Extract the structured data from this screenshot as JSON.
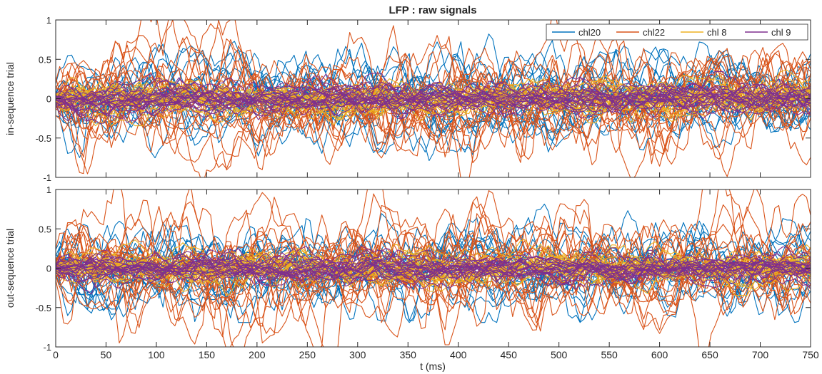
{
  "title": "LFP : raw signals",
  "xlabel": "t (ms)",
  "colors": {
    "chl20": "#0072BD",
    "chl22": "#D95319",
    "chl 8": "#EDB120",
    "chl 9": "#7E2F8E"
  },
  "legend": {
    "placement": "top-right (upper panel)",
    "entries": [
      "chl20",
      "chl22",
      "chl 8",
      "chl 9"
    ]
  },
  "chart_data": [
    {
      "type": "line",
      "panel": "top",
      "title": "LFP : raw signals",
      "xlabel": "",
      "ylabel": "in-sequence trial",
      "xlim": [
        0,
        750
      ],
      "ylim": [
        -1,
        1
      ],
      "xticks": [
        0,
        50,
        100,
        150,
        200,
        250,
        300,
        350,
        400,
        450,
        500,
        550,
        600,
        650,
        700,
        750
      ],
      "yticks": [
        -1,
        -0.5,
        0,
        0.5,
        1
      ],
      "ytick_labels": [
        "-1",
        "-0.5",
        "0",
        "0.5",
        "1"
      ],
      "show_xtick_labels": false,
      "grid": false,
      "series": [
        {
          "name": "chl20",
          "traces": 20,
          "approx_range": [
            -0.9,
            1.0
          ],
          "mean": 0
        },
        {
          "name": "chl22",
          "traces": 20,
          "approx_range": [
            -1.0,
            1.0
          ],
          "mean": 0
        },
        {
          "name": "chl 8",
          "traces": 20,
          "approx_range": [
            -0.3,
            0.4
          ],
          "mean": 0
        },
        {
          "name": "chl 9",
          "traces": 20,
          "approx_range": [
            -0.3,
            0.3
          ],
          "mean": 0
        }
      ]
    },
    {
      "type": "line",
      "panel": "bottom",
      "title": "",
      "xlabel": "t (ms)",
      "ylabel": "out-sequence trial",
      "xlim": [
        0,
        750
      ],
      "ylim": [
        -1,
        1
      ],
      "xticks": [
        0,
        50,
        100,
        150,
        200,
        250,
        300,
        350,
        400,
        450,
        500,
        550,
        600,
        650,
        700,
        750
      ],
      "yticks": [
        -1,
        -0.5,
        0,
        0.5,
        1
      ],
      "ytick_labels": [
        "-1",
        "-0.5",
        "0",
        "0.5",
        "1"
      ],
      "show_xtick_labels": true,
      "grid": false,
      "series": [
        {
          "name": "chl20",
          "traces": 20,
          "approx_range": [
            -0.6,
            0.9
          ],
          "mean": 0
        },
        {
          "name": "chl22",
          "traces": 20,
          "approx_range": [
            -1.0,
            1.0
          ],
          "mean": 0
        },
        {
          "name": "chl 8",
          "traces": 20,
          "approx_range": [
            -0.3,
            0.4
          ],
          "mean": 0
        },
        {
          "name": "chl 9",
          "traces": 20,
          "approx_range": [
            -0.3,
            0.3
          ],
          "mean": 0
        }
      ]
    }
  ]
}
